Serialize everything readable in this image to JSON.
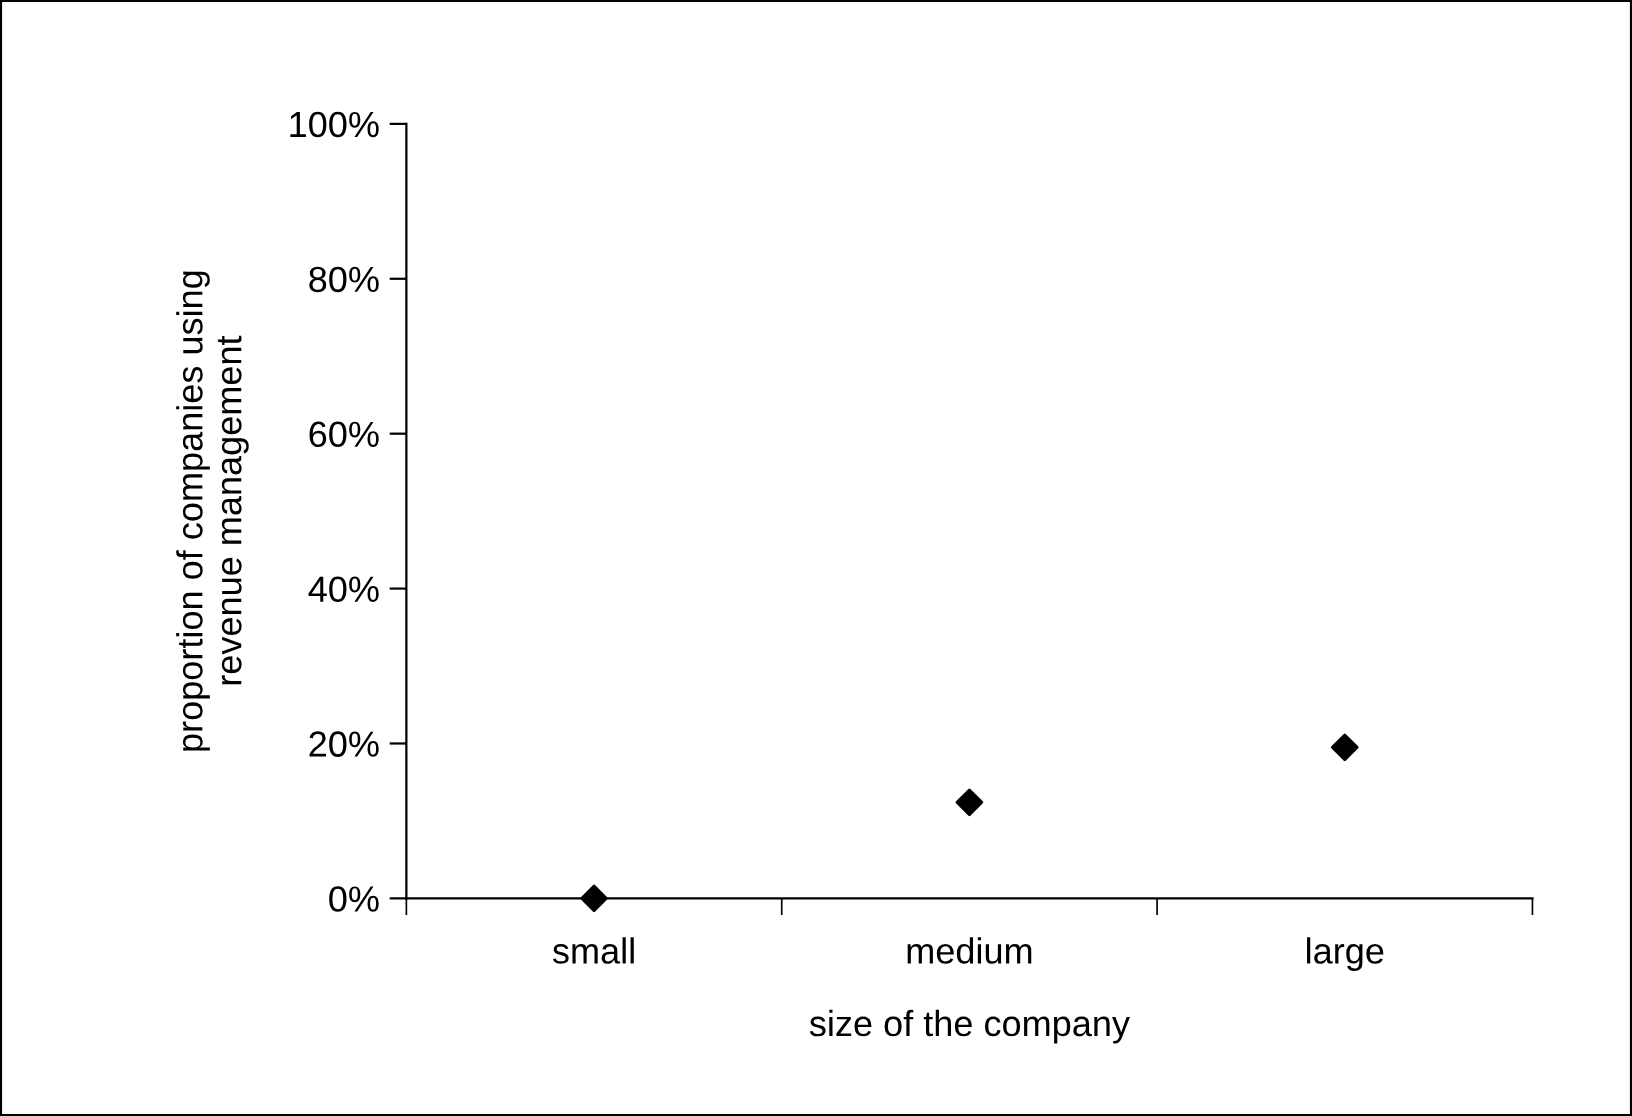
{
  "chart_data": {
    "type": "scatter",
    "xlabel": "size of the company",
    "ylabel": "proportion of companies using\nrevenue management",
    "categories": [
      "small",
      "medium",
      "large"
    ],
    "series": [
      {
        "color": "#000000",
        "values": [
          0,
          12.4,
          19.5
        ]
      }
    ],
    "marker": "diamond",
    "grid": false,
    "ylim": [
      0,
      100
    ],
    "yticks": [
      {
        "value": 0,
        "label": "0%"
      },
      {
        "value": 20,
        "label": "20%"
      },
      {
        "value": 40,
        "label": "40%"
      },
      {
        "value": 60,
        "label": "60%"
      },
      {
        "value": 80,
        "label": "80%"
      },
      {
        "value": 100,
        "label": "100%"
      }
    ]
  }
}
